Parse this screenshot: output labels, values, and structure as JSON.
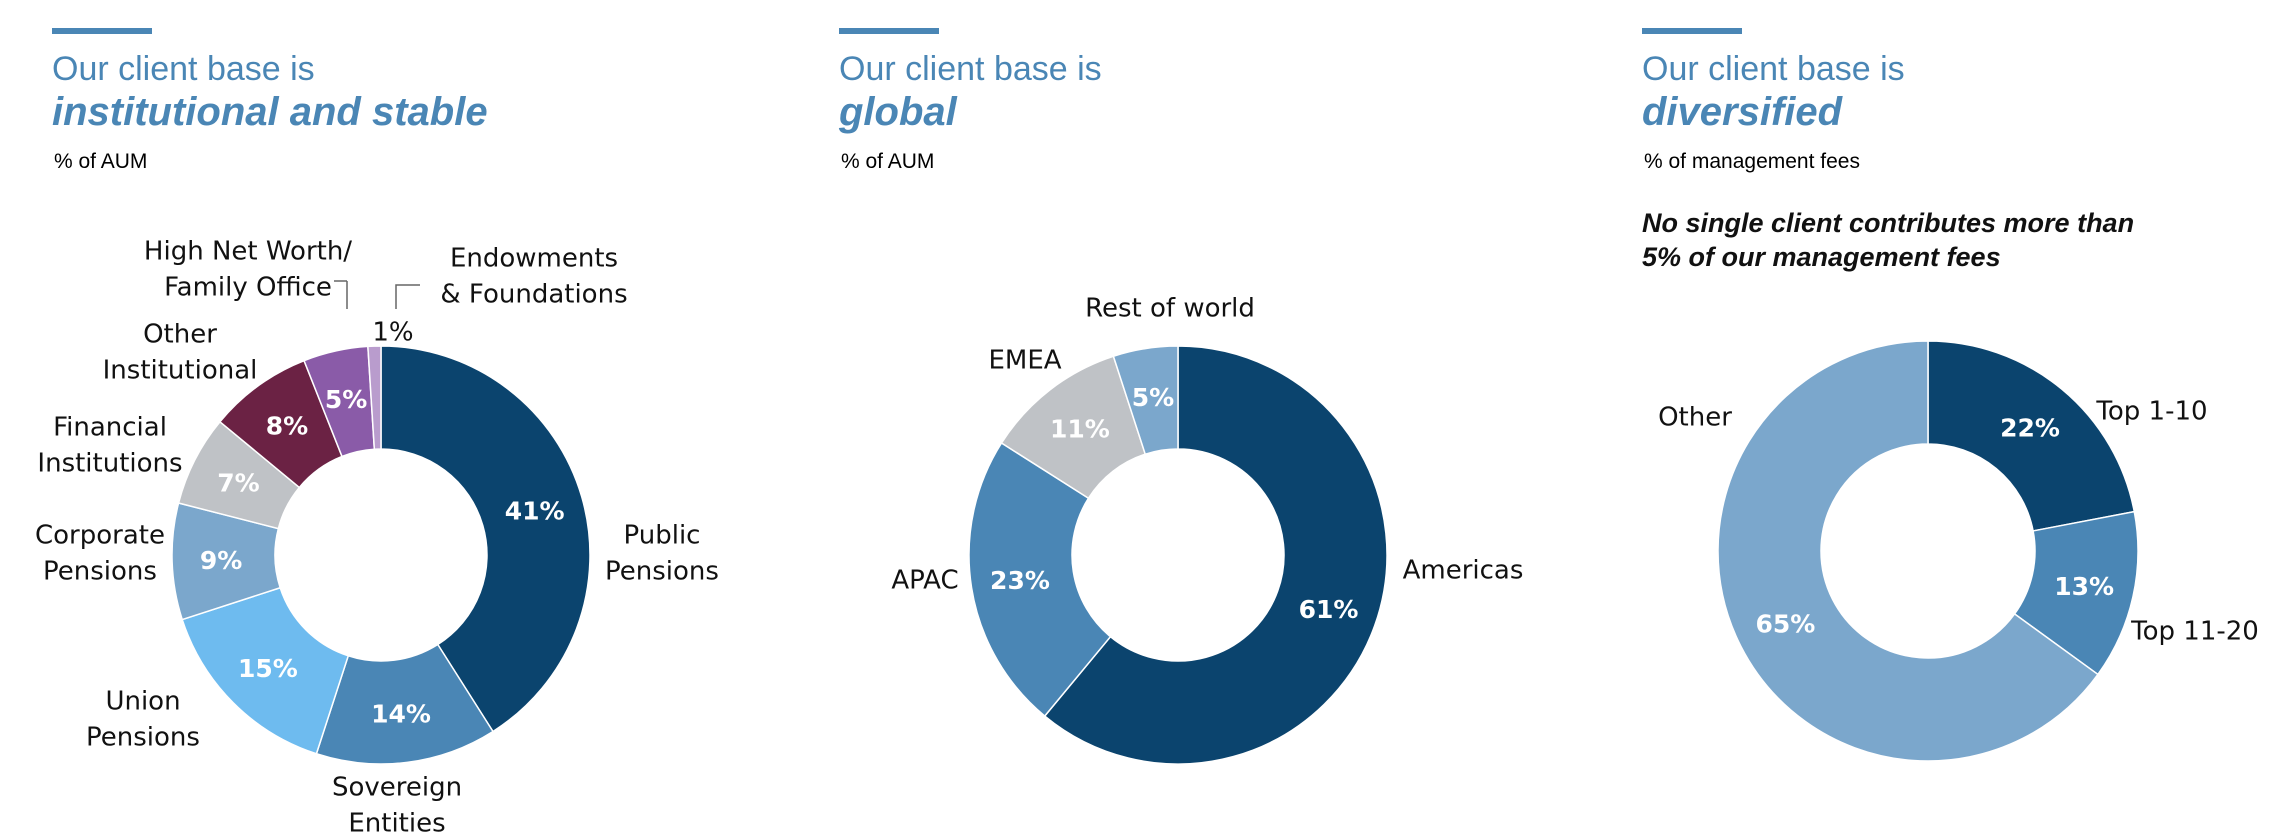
{
  "colors": {
    "accent": "#4a86b5",
    "dark_navy": "#0b446e",
    "mid_blue": "#4a86b5",
    "light_steel": "#7ba7cc",
    "sky_blue": "#6ebbef",
    "light_gray": "#bfc2c6",
    "maroon": "#6b2244",
    "purple": "#8a5ba8",
    "lavender": "#b99ccd"
  },
  "panels": [
    {
      "title_line1": "Our client base is",
      "title_line2": "institutional and stable",
      "subtitle": "% of AUM"
    },
    {
      "title_line1": "Our client base is",
      "title_line2": "global",
      "subtitle": "% of AUM"
    },
    {
      "title_line1": "Our client base is",
      "title_line2": "diversified",
      "subtitle": "% of management fees",
      "note_line1": "No single client contributes more than",
      "note_line2": "5% of our management fees"
    }
  ],
  "chart_data": [
    {
      "type": "pie",
      "donut": true,
      "title": "Our client base is institutional and stable",
      "subtitle": "% of AUM",
      "slices": [
        {
          "label": "Public Pensions",
          "value": 41,
          "display": "41%",
          "color": "#0b446e"
        },
        {
          "label": "Sovereign Entities",
          "value": 14,
          "display": "14%",
          "color": "#4a86b5"
        },
        {
          "label": "Union Pensions",
          "value": 15,
          "display": "15%",
          "color": "#6ebbef"
        },
        {
          "label": "Corporate Pensions",
          "value": 9,
          "display": "9%",
          "color": "#7ba7cc"
        },
        {
          "label": "Financial Institutions",
          "value": 7,
          "display": "7%",
          "color": "#bfc2c6"
        },
        {
          "label": "Other Institutional",
          "value": 8,
          "display": "8%",
          "color": "#6b2244"
        },
        {
          "label": "High Net Worth/ Family Office",
          "value": 5,
          "display": "5%",
          "color": "#8a5ba8"
        },
        {
          "label": "Endowments & Foundations",
          "value": 1,
          "display": "1%",
          "color": "#b99ccd"
        }
      ]
    },
    {
      "type": "pie",
      "donut": true,
      "title": "Our client base is global",
      "subtitle": "% of AUM",
      "slices": [
        {
          "label": "Americas",
          "value": 61,
          "display": "61%",
          "color": "#0b446e"
        },
        {
          "label": "APAC",
          "value": 23,
          "display": "23%",
          "color": "#4a86b5"
        },
        {
          "label": "EMEA",
          "value": 11,
          "display": "11%",
          "color": "#bfc2c6"
        },
        {
          "label": "Rest of world",
          "value": 5,
          "display": "5%",
          "color": "#7ba7cc"
        }
      ]
    },
    {
      "type": "pie",
      "donut": true,
      "title": "Our client base is diversified",
      "subtitle": "% of management fees",
      "slices": [
        {
          "label": "Top 1-10",
          "value": 22,
          "display": "22%",
          "color": "#0b446e"
        },
        {
          "label": "Top 11-20",
          "value": 13,
          "display": "13%",
          "color": "#4a86b5"
        },
        {
          "label": "Other",
          "value": 65,
          "display": "65%",
          "color": "#7ba7cc"
        }
      ]
    }
  ]
}
